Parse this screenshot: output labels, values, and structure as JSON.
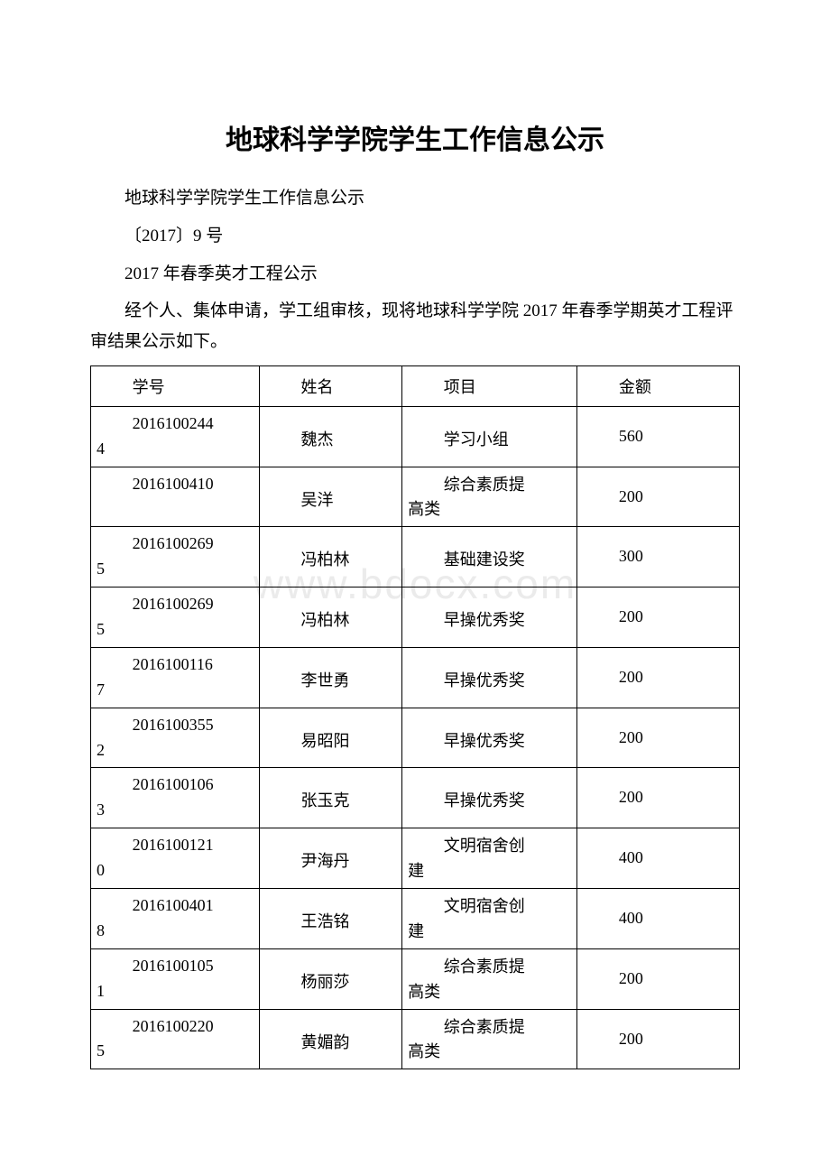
{
  "document": {
    "title": "地球科学学院学生工作信息公示",
    "subtitle": "地球科学学院学生工作信息公示",
    "doc_number": "〔2017〕9 号",
    "announcement": "2017 年春季英才工程公示",
    "intro": "经个人、集体申请，学工组审核，现将地球科学学院 2017 年春季学期英才工程评审结果公示如下。",
    "watermark": "www.bdocx.com"
  },
  "table": {
    "headers": {
      "id": "学号",
      "name": "姓名",
      "project": "项目",
      "amount": "金额"
    },
    "rows": [
      {
        "id_top": "2016100244",
        "id_bottom": "4",
        "name": "魏杰",
        "project": "学习小组",
        "project_wrap": false,
        "amount": "560"
      },
      {
        "id_top": "2016100410",
        "id_bottom": "",
        "name": "吴洋",
        "project_top": "综合素质提",
        "project_bottom": "高类",
        "project_wrap": true,
        "amount": "200"
      },
      {
        "id_top": "2016100269",
        "id_bottom": "5",
        "name": "冯柏林",
        "project": "基础建设奖",
        "project_wrap": false,
        "amount": "300"
      },
      {
        "id_top": "2016100269",
        "id_bottom": "5",
        "name": "冯柏林",
        "project": "早操优秀奖",
        "project_wrap": false,
        "amount": "200"
      },
      {
        "id_top": "2016100116",
        "id_bottom": "7",
        "name": "李世勇",
        "project": "早操优秀奖",
        "project_wrap": false,
        "amount": "200"
      },
      {
        "id_top": "2016100355",
        "id_bottom": "2",
        "name": "易昭阳",
        "project": "早操优秀奖",
        "project_wrap": false,
        "amount": "200"
      },
      {
        "id_top": "2016100106",
        "id_bottom": "3",
        "name": "张玉克",
        "project": "早操优秀奖",
        "project_wrap": false,
        "amount": "200"
      },
      {
        "id_top": "2016100121",
        "id_bottom": "0",
        "name": "尹海丹",
        "project_top": "文明宿舍创",
        "project_bottom": "建",
        "project_wrap": true,
        "amount": "400"
      },
      {
        "id_top": "2016100401",
        "id_bottom": "8",
        "name": "王浩铭",
        "project_top": "文明宿舍创",
        "project_bottom": "建",
        "project_wrap": true,
        "amount": "400"
      },
      {
        "id_top": "2016100105",
        "id_bottom": "1",
        "name": "杨丽莎",
        "project_top": "综合素质提",
        "project_bottom": "高类",
        "project_wrap": true,
        "amount": "200"
      },
      {
        "id_top": "2016100220",
        "id_bottom": "5",
        "name": "黄媚韵",
        "project_top": "综合素质提",
        "project_bottom": "高类",
        "project_wrap": true,
        "amount": "200"
      }
    ]
  }
}
